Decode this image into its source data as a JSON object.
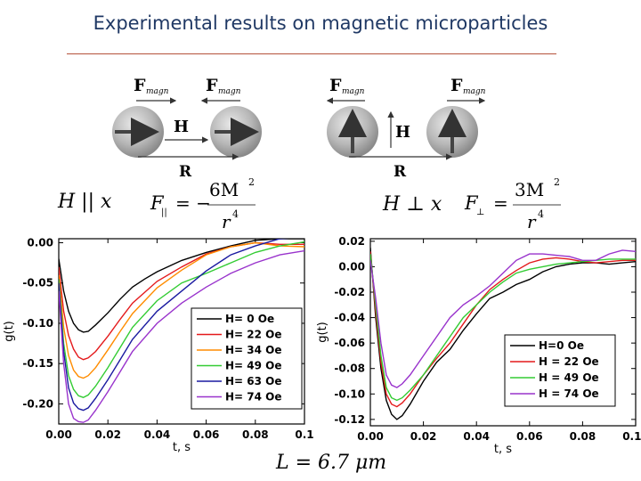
{
  "page": {
    "title": "Experimental results on magnetic microparticles",
    "bottom_formula": "L = 6.7 μm"
  },
  "diagrams": {
    "left": {
      "force_left": {
        "main": "F",
        "sub": "magn"
      },
      "force_right": {
        "main": "F",
        "sub": "magn"
      },
      "field_label": "H",
      "distance_label": "R",
      "condition": "H || x",
      "formula": {
        "lhs": "F",
        "lhs_sub": "||",
        "eq": "= −",
        "num": "6M",
        "num_exp": "2",
        "den": "r",
        "den_exp": "4"
      }
    },
    "right": {
      "force_left": {
        "main": "F",
        "sub": "magn"
      },
      "force_right": {
        "main": "F",
        "sub": "magn"
      },
      "field_label": "H",
      "distance_label": "R",
      "condition": "H ⊥ x",
      "formula": {
        "lhs": "F",
        "lhs_sub": "⊥",
        "eq": "=",
        "num": "3M",
        "num_exp": "2",
        "den": "r",
        "den_exp": "4"
      }
    }
  },
  "chart_data": [
    {
      "type": "line",
      "xlabel": "t, s",
      "ylabel": "g(t)",
      "xlim": [
        0,
        0.1
      ],
      "ylim": [
        -0.225,
        0.005
      ],
      "xticks": [
        "0.00",
        "0.02",
        "0.04",
        "0.06",
        "0.08",
        "0.1"
      ],
      "yticks": [
        "0.00",
        "-0.05",
        "-0.10",
        "-0.15",
        "-0.20"
      ],
      "xtick_values": [
        0,
        0.02,
        0.04,
        0.06,
        0.08,
        0.1
      ],
      "ytick_values": [
        0,
        -0.05,
        -0.1,
        -0.15,
        -0.2
      ],
      "legend_position": "bottom-right",
      "series": [
        {
          "name": "H= 0 Oe",
          "color": "#000000",
          "x": [
            0,
            0.002,
            0.004,
            0.006,
            0.008,
            0.01,
            0.012,
            0.015,
            0.02,
            0.025,
            0.03,
            0.035,
            0.04,
            0.05,
            0.06,
            0.07,
            0.08,
            0.09,
            0.1
          ],
          "y": [
            -0.02,
            -0.06,
            -0.085,
            -0.1,
            -0.108,
            -0.111,
            -0.11,
            -0.102,
            -0.087,
            -0.07,
            -0.055,
            -0.045,
            -0.036,
            -0.022,
            -0.012,
            -0.004,
            0.003,
            0.005,
            0.005
          ]
        },
        {
          "name": "H= 22 Oe",
          "color": "#e41a1c",
          "x": [
            0,
            0.002,
            0.004,
            0.006,
            0.008,
            0.01,
            0.012,
            0.015,
            0.02,
            0.025,
            0.03,
            0.04,
            0.05,
            0.06,
            0.07,
            0.08,
            0.09,
            0.1
          ],
          "y": [
            -0.03,
            -0.085,
            -0.115,
            -0.132,
            -0.142,
            -0.145,
            -0.143,
            -0.135,
            -0.116,
            -0.095,
            -0.075,
            -0.048,
            -0.03,
            -0.014,
            -0.005,
            0.0,
            -0.002,
            -0.002
          ]
        },
        {
          "name": "H= 34 Oe",
          "color": "#ff8c00",
          "x": [
            0,
            0.002,
            0.004,
            0.006,
            0.008,
            0.01,
            0.012,
            0.015,
            0.02,
            0.025,
            0.03,
            0.04,
            0.05,
            0.06,
            0.07,
            0.08,
            0.09,
            0.1
          ],
          "y": [
            -0.04,
            -0.105,
            -0.14,
            -0.158,
            -0.166,
            -0.168,
            -0.165,
            -0.155,
            -0.133,
            -0.11,
            -0.088,
            -0.056,
            -0.034,
            -0.015,
            -0.005,
            0.0,
            -0.004,
            -0.005
          ]
        },
        {
          "name": "H= 49 Oe",
          "color": "#33cc33",
          "x": [
            0,
            0.002,
            0.004,
            0.006,
            0.008,
            0.01,
            0.012,
            0.015,
            0.02,
            0.025,
            0.03,
            0.04,
            0.05,
            0.06,
            0.07,
            0.08,
            0.09,
            0.1
          ],
          "y": [
            -0.045,
            -0.125,
            -0.165,
            -0.182,
            -0.19,
            -0.192,
            -0.189,
            -0.178,
            -0.155,
            -0.13,
            -0.105,
            -0.072,
            -0.05,
            -0.038,
            -0.025,
            -0.012,
            -0.004,
            0.001
          ]
        },
        {
          "name": "H= 63 Oe",
          "color": "#1a1aa0",
          "x": [
            0,
            0.002,
            0.004,
            0.006,
            0.008,
            0.01,
            0.012,
            0.015,
            0.02,
            0.025,
            0.03,
            0.04,
            0.05,
            0.06,
            0.07,
            0.08,
            0.09,
            0.1
          ],
          "y": [
            -0.05,
            -0.135,
            -0.18,
            -0.199,
            -0.206,
            -0.208,
            -0.205,
            -0.193,
            -0.17,
            -0.145,
            -0.12,
            -0.085,
            -0.06,
            -0.035,
            -0.015,
            -0.004,
            0.005,
            0.007
          ]
        },
        {
          "name": "H= 74 Oe",
          "color": "#9933cc",
          "x": [
            0,
            0.002,
            0.004,
            0.006,
            0.008,
            0.01,
            0.012,
            0.015,
            0.02,
            0.025,
            0.03,
            0.04,
            0.05,
            0.06,
            0.07,
            0.08,
            0.09,
            0.1
          ],
          "y": [
            -0.06,
            -0.15,
            -0.2,
            -0.218,
            -0.222,
            -0.223,
            -0.22,
            -0.208,
            -0.185,
            -0.16,
            -0.135,
            -0.1,
            -0.075,
            -0.055,
            -0.038,
            -0.025,
            -0.015,
            -0.01
          ]
        }
      ]
    },
    {
      "type": "line",
      "xlabel": "t, s",
      "ylabel": "g(t)",
      "xlim": [
        0,
        0.1
      ],
      "ylim": [
        -0.125,
        0.022
      ],
      "xticks": [
        "0.00",
        "0.02",
        "0.04",
        "0.06",
        "0.08",
        "0.10"
      ],
      "yticks": [
        "0.02",
        "0.00",
        "-0.02",
        "-0.04",
        "-0.06",
        "-0.08",
        "-0.10",
        "-0.12"
      ],
      "xtick_values": [
        0,
        0.02,
        0.04,
        0.06,
        0.08,
        0.1
      ],
      "ytick_values": [
        0.02,
        0,
        -0.02,
        -0.04,
        -0.06,
        -0.08,
        -0.1,
        -0.12
      ],
      "legend_position": "bottom-right",
      "series": [
        {
          "name": "H=0 Oe",
          "color": "#000000",
          "x": [
            0,
            0.002,
            0.004,
            0.006,
            0.008,
            0.01,
            0.012,
            0.015,
            0.02,
            0.025,
            0.03,
            0.035,
            0.04,
            0.045,
            0.05,
            0.055,
            0.06,
            0.065,
            0.07,
            0.075,
            0.08,
            0.085,
            0.09,
            0.095,
            0.1
          ],
          "y": [
            0.015,
            -0.04,
            -0.08,
            -0.105,
            -0.116,
            -0.12,
            -0.117,
            -0.108,
            -0.09,
            -0.075,
            -0.065,
            -0.05,
            -0.037,
            -0.025,
            -0.02,
            -0.014,
            -0.01,
            -0.004,
            0.0,
            0.002,
            0.003,
            0.003,
            0.002,
            0.003,
            0.004
          ]
        },
        {
          "name": "H = 22 Oe",
          "color": "#e41a1c",
          "x": [
            0,
            0.002,
            0.004,
            0.006,
            0.008,
            0.01,
            0.012,
            0.015,
            0.02,
            0.025,
            0.03,
            0.035,
            0.04,
            0.045,
            0.05,
            0.055,
            0.06,
            0.065,
            0.07,
            0.075,
            0.08,
            0.085,
            0.09,
            0.095,
            0.1
          ],
          "y": [
            0.012,
            -0.035,
            -0.075,
            -0.1,
            -0.108,
            -0.11,
            -0.107,
            -0.1,
            -0.085,
            -0.072,
            -0.06,
            -0.045,
            -0.03,
            -0.018,
            -0.01,
            -0.003,
            0.003,
            0.006,
            0.007,
            0.006,
            0.004,
            0.003,
            0.004,
            0.005,
            0.005
          ]
        },
        {
          "name": "H = 49 Oe",
          "color": "#33cc33",
          "x": [
            0,
            0.002,
            0.004,
            0.006,
            0.008,
            0.01,
            0.012,
            0.015,
            0.02,
            0.025,
            0.03,
            0.035,
            0.04,
            0.045,
            0.05,
            0.055,
            0.06,
            0.065,
            0.07,
            0.075,
            0.08,
            0.085,
            0.09,
            0.095,
            0.1
          ],
          "y": [
            0.01,
            -0.03,
            -0.07,
            -0.095,
            -0.103,
            -0.105,
            -0.103,
            -0.097,
            -0.085,
            -0.07,
            -0.055,
            -0.04,
            -0.03,
            -0.02,
            -0.012,
            -0.005,
            -0.002,
            0.0,
            0.002,
            0.003,
            0.004,
            0.005,
            0.006,
            0.006,
            0.006
          ]
        },
        {
          "name": "H = 74 Oe",
          "color": "#9933cc",
          "x": [
            0,
            0.002,
            0.004,
            0.006,
            0.008,
            0.01,
            0.012,
            0.015,
            0.02,
            0.025,
            0.03,
            0.035,
            0.04,
            0.045,
            0.05,
            0.055,
            0.06,
            0.065,
            0.07,
            0.075,
            0.08,
            0.085,
            0.09,
            0.095,
            0.1
          ],
          "y": [
            0.005,
            -0.025,
            -0.06,
            -0.085,
            -0.093,
            -0.095,
            -0.092,
            -0.085,
            -0.07,
            -0.055,
            -0.04,
            -0.03,
            -0.023,
            -0.015,
            -0.005,
            0.005,
            0.01,
            0.01,
            0.009,
            0.008,
            0.005,
            0.005,
            0.01,
            0.013,
            0.012
          ]
        }
      ]
    }
  ]
}
